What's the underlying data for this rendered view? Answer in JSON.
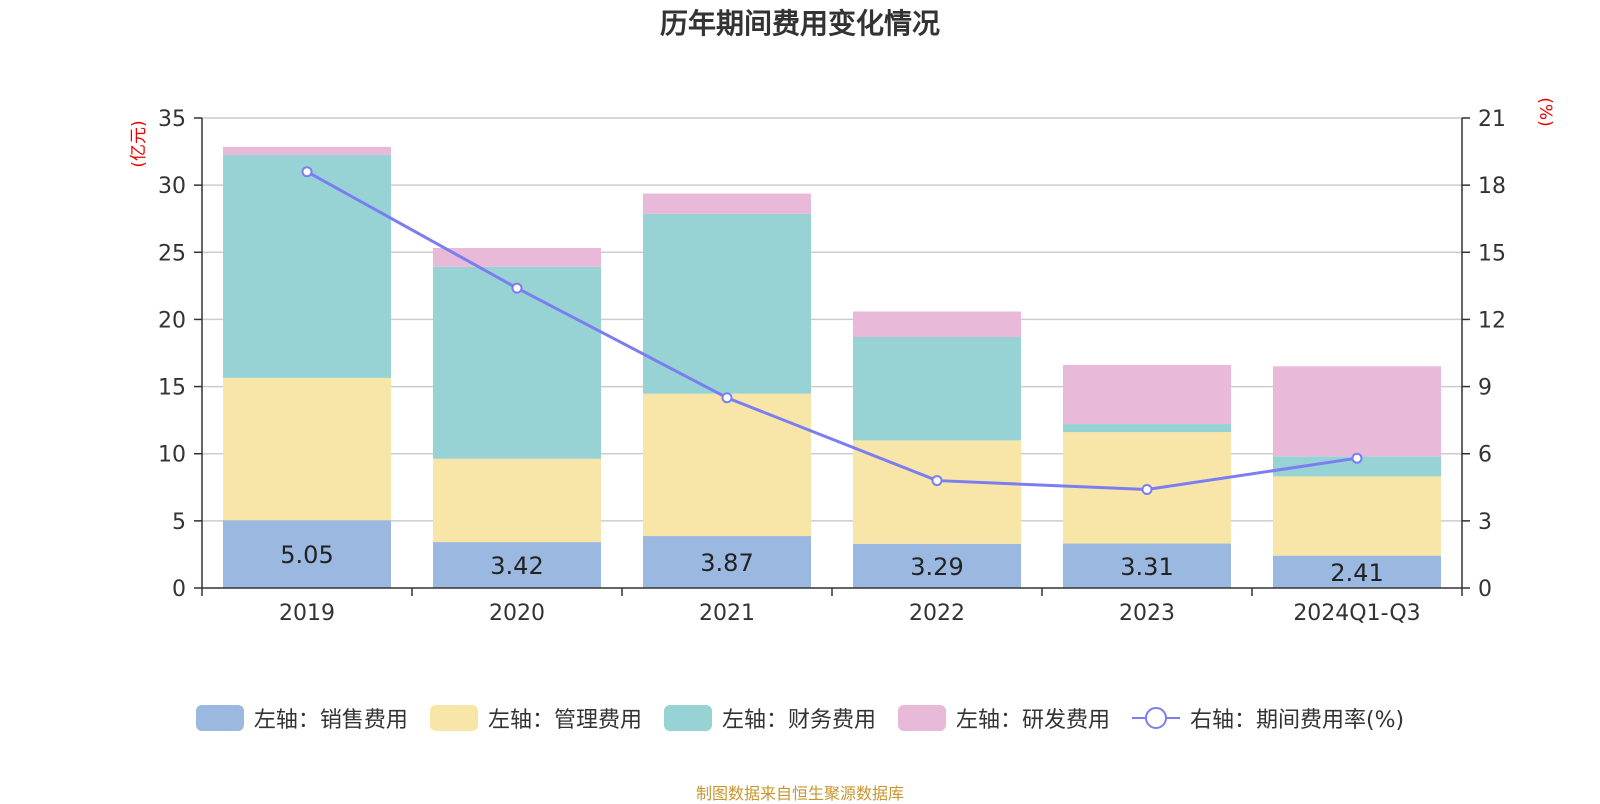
{
  "chart_data": {
    "type": "bar",
    "stacked": true,
    "title": "历年期间费用变化情况",
    "categories": [
      "2019",
      "2020",
      "2021",
      "2022",
      "2023",
      "2024Q1-Q3"
    ],
    "series": [
      {
        "name": "左轴：销售费用",
        "axis": "left",
        "color": "#9bb8e0",
        "values": [
          5.05,
          3.42,
          3.87,
          3.29,
          3.31,
          2.41
        ],
        "show_labels": true
      },
      {
        "name": "左轴：管理费用",
        "axis": "left",
        "color": "#f7e6a8",
        "values": [
          10.6,
          6.2,
          10.6,
          7.7,
          8.3,
          5.9
        ]
      },
      {
        "name": "左轴：财务费用",
        "axis": "left",
        "color": "#97d3d4",
        "values": [
          16.6,
          14.3,
          13.4,
          7.7,
          0.6,
          1.5
        ]
      },
      {
        "name": "左轴：研发费用",
        "axis": "left",
        "color": "#e8b9d9",
        "values": [
          0.6,
          1.4,
          1.5,
          1.9,
          4.4,
          6.7
        ]
      },
      {
        "name": "右轴：期间费用率(%)",
        "axis": "right",
        "type": "line",
        "color": "#7b7ef0",
        "values": [
          18.6,
          13.4,
          8.5,
          4.8,
          4.4,
          5.8
        ]
      }
    ],
    "left_axis": {
      "label": "(亿元)",
      "ylim": [
        0,
        35
      ],
      "ticks": [
        0,
        5,
        10,
        15,
        20,
        25,
        30,
        35
      ]
    },
    "right_axis": {
      "label": "(%)",
      "ylim": [
        0,
        21
      ],
      "ticks": [
        0,
        3,
        6,
        9,
        12,
        15,
        18,
        21
      ]
    },
    "grid": true,
    "legend_position": "bottom"
  },
  "source": "制图数据来自恒生聚源数据库"
}
